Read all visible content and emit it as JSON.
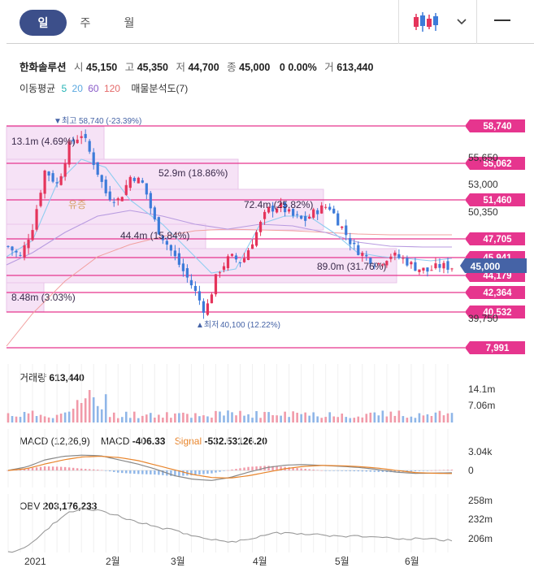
{
  "tabs": [
    "일",
    "주",
    "월"
  ],
  "header": {
    "name": "한화솔루션",
    "open_label": "시",
    "open": "45,150",
    "high_label": "고",
    "high": "45,350",
    "low_label": "저",
    "low": "44,700",
    "close_label": "종",
    "close": "45,000",
    "change": "0",
    "change_pct": "0.00%",
    "vol_label": "거",
    "volume": "613,440"
  },
  "ma_legend": {
    "label": "이동평균",
    "periods": [
      {
        "value": "5",
        "color": "#25b4b6"
      },
      {
        "value": "20",
        "color": "#5aa8e0"
      },
      {
        "value": "60",
        "color": "#8a5cc9"
      },
      {
        "value": "120",
        "color": "#e46a6a"
      }
    ],
    "vp_label": "매물분석도(7)"
  },
  "colors": {
    "up": "#e5345b",
    "down": "#3d7bd9",
    "level": "#e6358e",
    "tab_active": "#3c4f8a",
    "current": "#4563a6"
  },
  "chart_data": [
    {
      "type": "candlestick",
      "x_labels": [
        "2021",
        "2월",
        "3월",
        "4월",
        "5월",
        "6월"
      ],
      "y_ticks": [
        "55,650",
        "53,000",
        "50,350",
        "39,750"
      ],
      "ylim": [
        39750,
        58740
      ],
      "close_path": [
        47000,
        46000,
        49000,
        54500,
        53000,
        57000,
        58000,
        55000,
        52000,
        51500,
        54000,
        53000,
        49000,
        47000,
        45000,
        43000,
        40600,
        44500,
        46000,
        45500,
        48000,
        50500,
        51000,
        50000,
        49500,
        50500,
        51000,
        49000,
        47000,
        46000,
        45300,
        46200,
        45800,
        45000,
        44600,
        45100,
        45000
      ],
      "levels": [
        "58,740",
        "55,062",
        "51,460",
        "47,705",
        "45,941",
        "44,179",
        "42,364",
        "40,532",
        "7,991"
      ],
      "current_price": "45,000",
      "high_marker": {
        "prefix": "▼최고",
        "text": "58,740 (-23.39%)"
      },
      "low_marker": {
        "prefix": "▲최저",
        "text": "40,100 (12.22%)"
      },
      "volume_profile": [
        {
          "label": "13.1m (4.69%)",
          "align": "left"
        },
        {
          "label": "52.9m (18.86%)",
          "align": "left"
        },
        {
          "label": "72.4m (25.82%)",
          "align": "left"
        },
        {
          "label": "44.4m (15.84%)",
          "align": "left"
        },
        {
          "label": "89.0m (31.76%)",
          "align": "left"
        },
        {
          "label": "8.48m (3.03%)",
          "align": "left"
        }
      ],
      "annotation": "유증"
    },
    {
      "type": "bar",
      "title": "거래량",
      "value": "613,440",
      "y_ticks": [
        "14.1m",
        "7.06m"
      ]
    },
    {
      "type": "line",
      "title": "MACD (12,26,9)",
      "macd_label": "MACD",
      "macd": "-406.33",
      "signal_label": "Signal",
      "signal": "-532.53126.20",
      "y_ticks": [
        "3.04k",
        "0"
      ],
      "macd_path": [
        0,
        600,
        1800,
        2400,
        2600,
        2500,
        1800,
        1100,
        200,
        -900,
        -1500,
        -1700,
        -1200,
        -300,
        500,
        900,
        1000,
        850,
        700,
        500,
        150,
        -300,
        -500,
        -450,
        -400
      ],
      "signal_path": [
        0,
        300,
        1100,
        1800,
        2300,
        2400,
        2200,
        1700,
        900,
        100,
        -700,
        -1200,
        -1300,
        -900,
        -300,
        300,
        700,
        850,
        800,
        650,
        400,
        0,
        -350,
        -480,
        -530
      ]
    },
    {
      "type": "line",
      "title": "OBV",
      "value": "203,176,233",
      "y_ticks": [
        "258m",
        "232m",
        "206m"
      ],
      "obv_path": [
        186,
        194,
        215,
        238,
        248,
        244,
        236,
        228,
        222,
        216,
        210,
        204,
        200,
        205,
        211,
        214,
        212,
        210,
        208,
        209,
        207,
        206,
        205,
        204,
        203
      ]
    }
  ]
}
